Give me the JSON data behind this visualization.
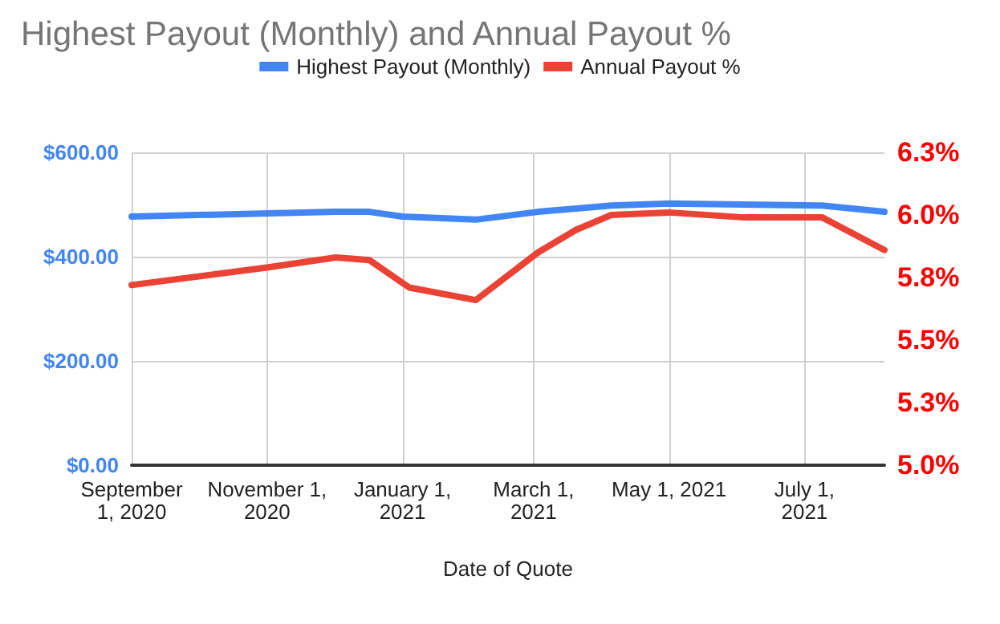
{
  "chart_data": {
    "type": "line",
    "title": "Highest Payout (Monthly) and Annual Payout %",
    "xlabel": "Date of Quote",
    "xlim": [
      "2020-09-01",
      "2021-08-06"
    ],
    "xticks": [
      {
        "value": "2020-09-01",
        "label": "September 1, 2020"
      },
      {
        "value": "2020-11-01",
        "label": "November 1, 2020"
      },
      {
        "value": "2021-01-01",
        "label": "January 1, 2021"
      },
      {
        "value": "2021-03-01",
        "label": "March 1, 2021"
      },
      {
        "value": "2021-05-01",
        "label": "May 1, 2021"
      },
      {
        "value": "2021-07-01",
        "label": "July 1, 2021"
      }
    ],
    "ylim": [
      0,
      600
    ],
    "yticks": [
      {
        "value": 0,
        "label": "$0.00"
      },
      {
        "value": 200,
        "label": "$200.00"
      },
      {
        "value": 400,
        "label": "$400.00"
      },
      {
        "value": 600,
        "label": "$600.00"
      }
    ],
    "y2lim": [
      5.0,
      6.25
    ],
    "y2ticks": [
      {
        "value": 5.0,
        "label": "5.0%"
      },
      {
        "value": 5.25,
        "label": "5.3%"
      },
      {
        "value": 5.5,
        "label": "5.5%"
      },
      {
        "value": 5.75,
        "label": "5.8%"
      },
      {
        "value": 6.0,
        "label": "6.0%"
      },
      {
        "value": 6.25,
        "label": "6.3%"
      }
    ],
    "grid": true,
    "legend": "top",
    "marker": "none",
    "line_style": "solid",
    "series": [
      {
        "name": "Highest Payout (Monthly)",
        "color": "#4285f4",
        "x": [
          "2020-09-01",
          "2020-12-02",
          "2020-12-17",
          "2021-01-01",
          "2021-02-03",
          "2021-03-03",
          "2021-04-05",
          "2021-05-01",
          "2021-07-09",
          "2021-08-06"
        ],
        "values": [
          477,
          486,
          486,
          477,
          471,
          486,
          498,
          502,
          498,
          486
        ]
      },
      {
        "name": "Annual Payout %",
        "color": "#ea4335",
        "axis": "y2",
        "x": [
          "2020-09-01",
          "2020-11-01",
          "2020-12-02",
          "2020-12-17",
          "2021-01-04",
          "2021-02-03",
          "2021-03-03",
          "2021-03-20",
          "2021-04-05",
          "2021-05-01",
          "2021-06-04",
          "2021-07-09",
          "2021-08-06"
        ],
        "values": [
          5.72,
          5.79,
          5.83,
          5.82,
          5.71,
          5.66,
          5.85,
          5.94,
          6.0,
          6.01,
          5.99,
          5.99,
          5.86
        ]
      }
    ]
  }
}
